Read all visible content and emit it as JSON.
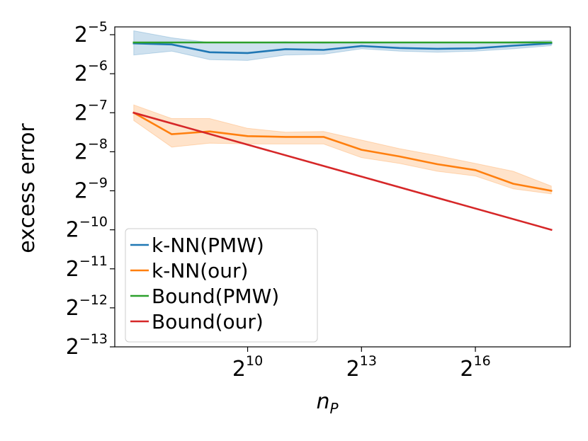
{
  "chart_data": {
    "type": "line",
    "title": "",
    "xlabel": "n",
    "xlabel_sub": "P",
    "ylabel": "excess error",
    "x_scale": "log2",
    "y_scale": "log2",
    "xlim_log2": [
      6.5,
      18.5
    ],
    "ylim_log2": [
      -13,
      -4.8
    ],
    "x_ticks": [
      {
        "base": "2",
        "exp": "10",
        "value_log2": 10
      },
      {
        "base": "2",
        "exp": "13",
        "value_log2": 13
      },
      {
        "base": "2",
        "exp": "16",
        "value_log2": 16
      }
    ],
    "y_ticks": [
      {
        "base": "2",
        "exp": "−5",
        "value_log2": -5
      },
      {
        "base": "2",
        "exp": "−6",
        "value_log2": -6
      },
      {
        "base": "2",
        "exp": "−7",
        "value_log2": -7
      },
      {
        "base": "2",
        "exp": "−8",
        "value_log2": -8
      },
      {
        "base": "2",
        "exp": "−9",
        "value_log2": -9
      },
      {
        "base": "2",
        "exp": "−10",
        "value_log2": -10
      },
      {
        "base": "2",
        "exp": "−11",
        "value_log2": -11
      },
      {
        "base": "2",
        "exp": "−12",
        "value_log2": -12
      },
      {
        "base": "2",
        "exp": "−13",
        "value_log2": -13
      }
    ],
    "legend_position": "lower-left",
    "series": [
      {
        "name": "k-NN(PMW)",
        "color": "#1f77b4",
        "x_log2": [
          7,
          8,
          9,
          10,
          11,
          12,
          13,
          14,
          15,
          16,
          17,
          18
        ],
        "y_log2": [
          -5.22,
          -5.25,
          -5.45,
          -5.47,
          -5.37,
          -5.39,
          -5.29,
          -5.34,
          -5.36,
          -5.35,
          -5.28,
          -5.22
        ],
        "band_upper_log2": [
          -4.9,
          -5.08,
          -5.2,
          -5.2,
          -5.18,
          -5.22,
          -5.18,
          -5.2,
          -5.2,
          -5.2,
          -5.18,
          -5.15
        ],
        "band_lower_log2": [
          -5.52,
          -5.42,
          -5.64,
          -5.66,
          -5.52,
          -5.5,
          -5.36,
          -5.42,
          -5.45,
          -5.42,
          -5.36,
          -5.28
        ]
      },
      {
        "name": "k-NN(our)",
        "color": "#ff7f0e",
        "x_log2": [
          7,
          8,
          9,
          10,
          11,
          12,
          13,
          14,
          15,
          16,
          17,
          18
        ],
        "y_log2": [
          -7.0,
          -7.55,
          -7.48,
          -7.6,
          -7.62,
          -7.62,
          -7.95,
          -8.12,
          -8.32,
          -8.47,
          -8.82,
          -9.0
        ],
        "band_upper_log2": [
          -6.8,
          -7.15,
          -7.15,
          -7.4,
          -7.5,
          -7.48,
          -7.7,
          -7.92,
          -8.1,
          -8.3,
          -8.5,
          -8.88
        ],
        "band_lower_log2": [
          -7.2,
          -7.88,
          -7.78,
          -7.8,
          -7.8,
          -7.8,
          -8.15,
          -8.3,
          -8.5,
          -8.62,
          -8.95,
          -9.08
        ]
      },
      {
        "name": "Bound(PMW)",
        "color": "#2ca02c",
        "x_log2": [
          7,
          18
        ],
        "y_log2": [
          -5.2,
          -5.2
        ]
      },
      {
        "name": "Bound(our)",
        "color": "#d62728",
        "x_log2": [
          7,
          18
        ],
        "y_log2": [
          -7.0,
          -10.0
        ]
      }
    ]
  }
}
